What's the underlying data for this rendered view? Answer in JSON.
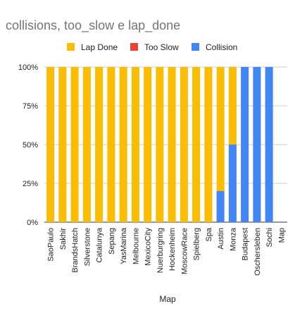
{
  "chart_data": {
    "type": "bar",
    "stacked": "percent",
    "title": "collisions, too_slow e lap_done",
    "xlabel": "Map",
    "ylabel": "",
    "ylim": [
      0,
      1
    ],
    "yticks": [
      "0%",
      "25%",
      "50%",
      "75%",
      "100%"
    ],
    "grid": true,
    "legend_position": "top",
    "categories": [
      "SaoPaulo",
      "Sakhir",
      "BrandsHatch",
      "Silverstone",
      "Catalunya",
      "Sepang",
      "YasMarina",
      "Melbourne",
      "MexicoCity",
      "Nuerburgring",
      "Hockenheim",
      "MoscowRace",
      "Spielberg",
      "Spa",
      "Austin",
      "Monza",
      "Budapest",
      "Oschersleben",
      "Sochi",
      "Map"
    ],
    "series": [
      {
        "name": "Collision",
        "color": "#4285f4",
        "values": [
          0,
          0,
          0,
          0,
          0,
          0,
          0,
          0,
          0,
          0,
          0,
          0,
          0,
          0,
          0.2,
          0.5,
          1,
          1,
          1,
          0
        ]
      },
      {
        "name": "Too Slow",
        "color": "#ea4335",
        "values": [
          0,
          0,
          0,
          0,
          0,
          0,
          0,
          0,
          0,
          0,
          0,
          0,
          0,
          0,
          0,
          0,
          0,
          0,
          0,
          0
        ]
      },
      {
        "name": "Lap Done",
        "color": "#fbbc04",
        "values": [
          1,
          1,
          1,
          1,
          1,
          1,
          1,
          1,
          1,
          1,
          1,
          1,
          1,
          1,
          0.8,
          0.5,
          0,
          0,
          0,
          0
        ]
      }
    ],
    "legend_order": [
      "Lap Done",
      "Too Slow",
      "Collision"
    ]
  }
}
